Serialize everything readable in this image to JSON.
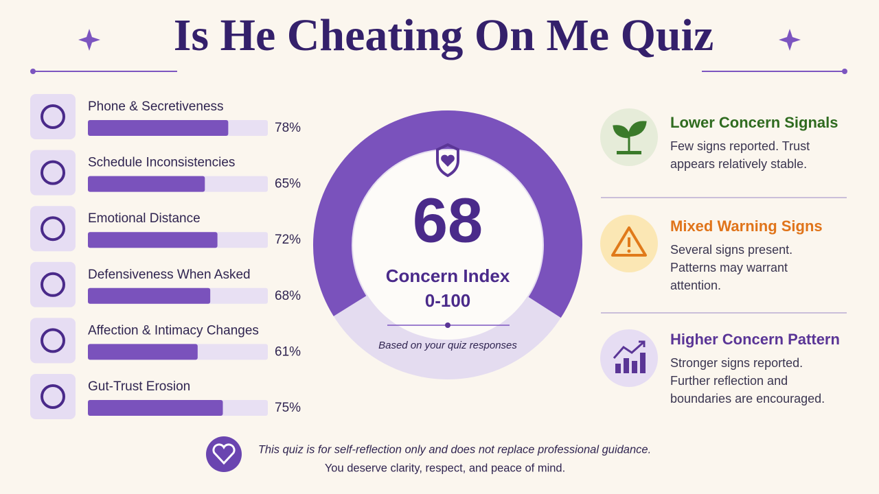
{
  "title": "Is He Cheating On Me Quiz",
  "factors": [
    {
      "label": "Phone & Secretiveness",
      "value": 78,
      "value_label": "78%"
    },
    {
      "label": "Schedule Inconsistencies",
      "value": 65,
      "value_label": "65%"
    },
    {
      "label": "Emotional Distance",
      "value": 72,
      "value_label": "72%"
    },
    {
      "label": "Defensiveness When Asked",
      "value": 68,
      "value_label": "68%"
    },
    {
      "label": "Affection & Intimacy Changes",
      "value": 61,
      "value_label": "61%"
    },
    {
      "label": "Gut-Trust Erosion",
      "value": 75,
      "value_label": "75%"
    }
  ],
  "gauge": {
    "value": 68,
    "label": "Concern Index",
    "range": "0-100",
    "note": "Based on your quiz responses"
  },
  "levels": [
    {
      "title": "Lower Concern Signals",
      "color": "#2f6b1f",
      "lines": [
        "Few signs reported. Trust",
        "appears relatively stable."
      ]
    },
    {
      "title": "Mixed Warning Signs",
      "color": "#e0741a",
      "lines": [
        "Several signs present.",
        "Patterns may warrant",
        "attention."
      ]
    },
    {
      "title": "Higher Concern Pattern",
      "color": "#5a3596",
      "lines": [
        "Stronger signs reported.",
        "Further reflection and",
        "boundaries are encouraged."
      ]
    }
  ],
  "footer": {
    "line1": "This quiz is for self-reflection only and does not replace professional guidance.",
    "line2": "You deserve clarity, respect, and peace of mind."
  }
}
